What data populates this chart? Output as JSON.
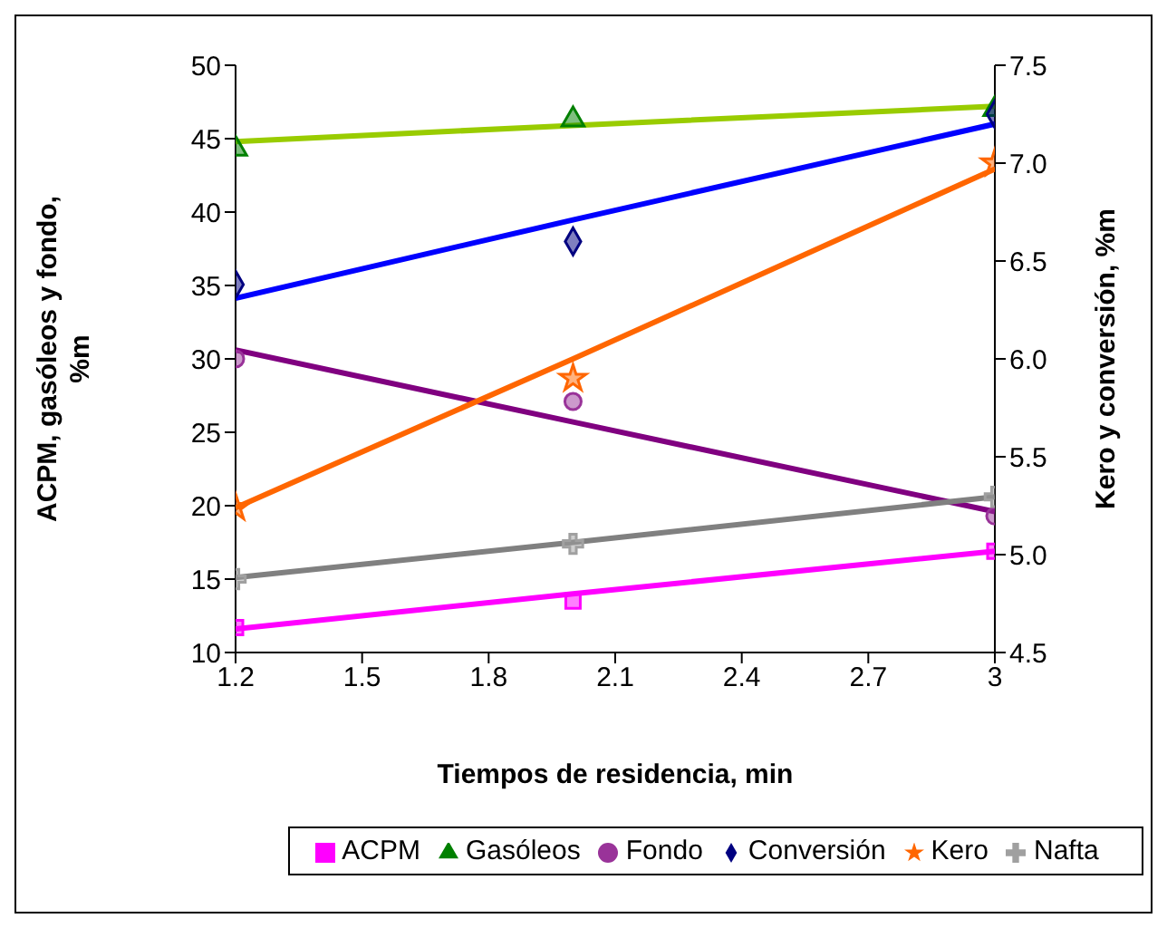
{
  "chart_data": {
    "type": "scatter",
    "xlabel": "Tiempos de residencia, min",
    "ylabel": "ACPM, gasóleos y fondo, %m",
    "y2label": "Kero y conversión, %m",
    "x": [
      1.2,
      2.0,
      3
    ],
    "xlim": [
      1.2,
      3
    ],
    "xticks": [
      1.2,
      1.5,
      1.8,
      2.1,
      2.4,
      2.7,
      3
    ],
    "ylim": [
      10,
      50
    ],
    "yticks": [
      10,
      15,
      20,
      25,
      30,
      35,
      40,
      45,
      50
    ],
    "y2lim": [
      4.5,
      7.5
    ],
    "y2ticks": [
      {
        "value": 4.5,
        "label": "4.5"
      },
      {
        "value": 5,
        "label": "5.0"
      },
      {
        "value": 5.5,
        "label": "5.5"
      },
      {
        "value": 6,
        "label": "6.0"
      },
      {
        "value": 6.5,
        "label": "6.5"
      },
      {
        "value": 7,
        "label": "7.0"
      },
      {
        "value": 7.5,
        "label": "7.5"
      }
    ],
    "grid": false,
    "legend": "bottom",
    "line_style": "solid",
    "series": [
      {
        "type": "line",
        "color": "#ff00ff",
        "values": [
          11.6,
          14.0,
          16.9
        ]
      },
      {
        "type": "line",
        "color": "#99cc00",
        "values": [
          44.8,
          45.9,
          47.2
        ]
      },
      {
        "type": "line",
        "color": "#800080",
        "values": [
          30.6,
          25.7,
          19.6
        ]
      },
      {
        "type": "line",
        "color": "#0000ff",
        "values": [
          6.31,
          6.71,
          7.2
        ],
        "axis": "y2"
      },
      {
        "type": "line",
        "color": "#ff6600",
        "values": [
          5.24,
          6.0,
          6.97
        ],
        "axis": "y2"
      },
      {
        "type": "line",
        "color": "#808080",
        "values": [
          15.1,
          17.5,
          20.6
        ]
      },
      {
        "name": "ACPM",
        "color": "#ff00ff",
        "marker": "square",
        "values": [
          11.7,
          13.5,
          16.9
        ]
      },
      {
        "name": "Gasóleos",
        "color": "#008000",
        "marker": "triangle",
        "values": [
          44.3,
          46.3,
          47.0
        ]
      },
      {
        "name": "Fondo",
        "color": "#993399",
        "marker": "circle",
        "values": [
          30.0,
          27.1,
          19.3
        ]
      },
      {
        "name": "Conversión",
        "color": "#000080",
        "marker": "diamond",
        "axis": "y2",
        "values": [
          6.38,
          6.6,
          7.25
        ]
      },
      {
        "name": "Kero",
        "color": "#ff6600",
        "marker": "star",
        "axis": "y2",
        "values": [
          5.24,
          5.9,
          7.0
        ]
      },
      {
        "name": "Nafta",
        "color": "#a0a0a0",
        "marker": "cross",
        "values": [
          15.0,
          17.4,
          20.6
        ]
      }
    ]
  }
}
